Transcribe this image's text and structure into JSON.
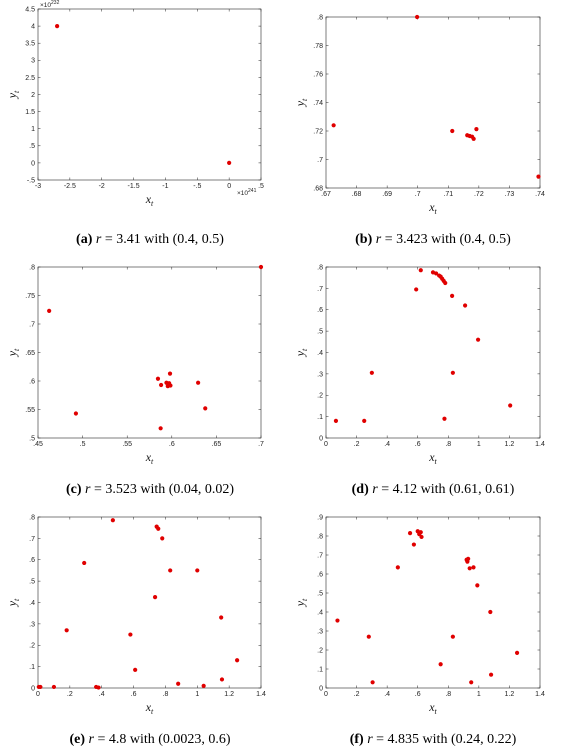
{
  "chart_data": [
    {
      "panel": "a",
      "type": "scatter",
      "caption": {
        "label": "(a)",
        "r_value": "3.41",
        "init": "(0.4, 0.5)"
      },
      "xlabel": "x_t",
      "ylabel": "y_t",
      "xlim": [
        -3,
        0.5
      ],
      "ylim": [
        -0.5,
        4.5
      ],
      "xticks": [
        -3,
        -2.5,
        -2,
        -1.5,
        -1,
        -0.5,
        0,
        0.5
      ],
      "yticks": [
        -0.5,
        0,
        0.5,
        1,
        1.5,
        2,
        2.5,
        3,
        3.5,
        4,
        4.5
      ],
      "x_multiplier": "×10",
      "x_exponent": "241",
      "y_multiplier": "×10",
      "y_exponent": "232",
      "points": [
        [
          -2.7,
          4.0
        ],
        [
          0.0,
          0.0
        ]
      ]
    },
    {
      "panel": "b",
      "type": "scatter",
      "caption": {
        "label": "(b)",
        "r_value": "3.423",
        "init": "(0.4, 0.5)"
      },
      "xlabel": "x_t",
      "ylabel": "y_t",
      "xlim": [
        0.67,
        0.74
      ],
      "ylim": [
        0.68,
        0.8
      ],
      "xticks": [
        0.67,
        0.68,
        0.69,
        0.7,
        0.71,
        0.72,
        0.73,
        0.74
      ],
      "yticks": [
        0.68,
        0.7,
        0.72,
        0.74,
        0.76,
        0.78,
        0.8
      ],
      "points": [
        [
          0.6725,
          0.724
        ],
        [
          0.6998,
          0.8
        ],
        [
          0.7113,
          0.72
        ],
        [
          0.7162,
          0.717
        ],
        [
          0.717,
          0.7165
        ],
        [
          0.7178,
          0.716
        ],
        [
          0.7183,
          0.7145
        ],
        [
          0.7192,
          0.7213
        ],
        [
          0.7395,
          0.688
        ]
      ]
    },
    {
      "panel": "c",
      "type": "scatter",
      "caption": {
        "label": "(c)",
        "r_value": "3.523",
        "init": "(0.04, 0.02)"
      },
      "xlabel": "x_t",
      "ylabel": "y_t",
      "xlim": [
        0.45,
        0.7
      ],
      "ylim": [
        0.5,
        0.8
      ],
      "xticks": [
        0.45,
        0.5,
        0.55,
        0.6,
        0.65,
        0.7
      ],
      "yticks": [
        0.5,
        0.55,
        0.6,
        0.65,
        0.7,
        0.75,
        0.8
      ],
      "points": [
        [
          0.4625,
          0.723
        ],
        [
          0.4925,
          0.543
        ],
        [
          0.5845,
          0.604
        ],
        [
          0.5875,
          0.517
        ],
        [
          0.588,
          0.593
        ],
        [
          0.594,
          0.597
        ],
        [
          0.5955,
          0.591
        ],
        [
          0.597,
          0.596
        ],
        [
          0.5985,
          0.592
        ],
        [
          0.598,
          0.613
        ],
        [
          0.6295,
          0.597
        ],
        [
          0.6375,
          0.552
        ],
        [
          0.7,
          0.8
        ]
      ]
    },
    {
      "panel": "d",
      "type": "scatter",
      "caption": {
        "label": "(d)",
        "r_value": "4.12",
        "init": "(0.61, 0.61)"
      },
      "xlabel": "x_t",
      "ylabel": "y_t",
      "xlim": [
        0,
        1.4
      ],
      "ylim": [
        0,
        0.8
      ],
      "xticks": [
        0,
        0.2,
        0.4,
        0.6,
        0.8,
        1,
        1.2,
        1.4
      ],
      "yticks": [
        0,
        0.1,
        0.2,
        0.3,
        0.4,
        0.5,
        0.6,
        0.7,
        0.8
      ],
      "points": [
        [
          0.065,
          0.08
        ],
        [
          0.25,
          0.08
        ],
        [
          0.3,
          0.305
        ],
        [
          0.59,
          0.695
        ],
        [
          0.62,
          0.785
        ],
        [
          0.7,
          0.775
        ],
        [
          0.72,
          0.77
        ],
        [
          0.74,
          0.76
        ],
        [
          0.75,
          0.755
        ],
        [
          0.76,
          0.745
        ],
        [
          0.77,
          0.735
        ],
        [
          0.78,
          0.725
        ],
        [
          0.775,
          0.09
        ],
        [
          0.825,
          0.665
        ],
        [
          0.83,
          0.305
        ],
        [
          0.91,
          0.62
        ],
        [
          0.995,
          0.46
        ],
        [
          1.205,
          0.152
        ]
      ]
    },
    {
      "panel": "e",
      "type": "scatter",
      "caption": {
        "label": "(e)",
        "r_value": "4.8",
        "init": "(0.0023, 0.6)"
      },
      "xlabel": "x_t",
      "ylabel": "y_t",
      "xlim": [
        0,
        1.4
      ],
      "ylim": [
        0,
        0.8
      ],
      "xticks": [
        0,
        0.2,
        0.4,
        0.6,
        0.8,
        1,
        1.2,
        1.4
      ],
      "yticks": [
        0,
        0.1,
        0.2,
        0.3,
        0.4,
        0.5,
        0.6,
        0.7,
        0.8
      ],
      "points": [
        [
          0.005,
          0.005
        ],
        [
          0.015,
          0.005
        ],
        [
          0.1,
          0.005
        ],
        [
          0.18,
          0.27
        ],
        [
          0.29,
          0.585
        ],
        [
          0.365,
          0.005
        ],
        [
          0.38,
          0.002
        ],
        [
          0.47,
          0.785
        ],
        [
          0.58,
          0.25
        ],
        [
          0.61,
          0.085
        ],
        [
          0.735,
          0.425
        ],
        [
          0.745,
          0.755
        ],
        [
          0.755,
          0.745
        ],
        [
          0.78,
          0.7
        ],
        [
          0.83,
          0.55
        ],
        [
          0.88,
          0.02
        ],
        [
          1.0,
          0.55
        ],
        [
          1.04,
          0.01
        ],
        [
          1.15,
          0.33
        ],
        [
          1.155,
          0.04
        ],
        [
          1.25,
          0.13
        ]
      ]
    },
    {
      "panel": "f",
      "type": "scatter",
      "caption": {
        "label": "(f)",
        "r_value": "4.835",
        "init": "(0.24, 0.22)"
      },
      "xlabel": "x_t",
      "ylabel": "y_t",
      "xlim": [
        0,
        1.4
      ],
      "ylim": [
        0,
        0.9
      ],
      "xticks": [
        0,
        0.2,
        0.4,
        0.6,
        0.8,
        1,
        1.2,
        1.4
      ],
      "yticks": [
        0,
        0.1,
        0.2,
        0.3,
        0.4,
        0.5,
        0.6,
        0.7,
        0.8,
        0.9
      ],
      "points": [
        [
          0.075,
          0.355
        ],
        [
          0.28,
          0.27
        ],
        [
          0.305,
          0.03
        ],
        [
          0.47,
          0.635
        ],
        [
          0.55,
          0.815
        ],
        [
          0.575,
          0.755
        ],
        [
          0.6,
          0.825
        ],
        [
          0.61,
          0.81
        ],
        [
          0.62,
          0.82
        ],
        [
          0.625,
          0.795
        ],
        [
          0.75,
          0.125
        ],
        [
          0.83,
          0.27
        ],
        [
          0.92,
          0.675
        ],
        [
          0.925,
          0.665
        ],
        [
          0.93,
          0.68
        ],
        [
          0.94,
          0.63
        ],
        [
          0.95,
          0.03
        ],
        [
          0.965,
          0.635
        ],
        [
          0.99,
          0.54
        ],
        [
          1.075,
          0.4
        ],
        [
          1.08,
          0.07
        ],
        [
          1.25,
          0.185
        ]
      ]
    }
  ]
}
